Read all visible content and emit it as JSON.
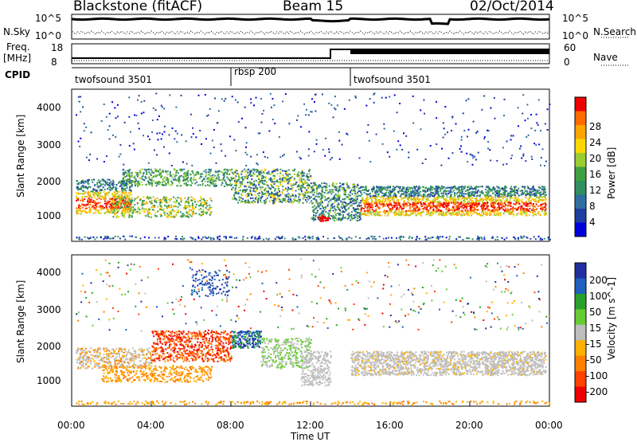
{
  "header": {
    "title": "Blackstone (fitACF)",
    "beam": "Beam 15",
    "date": "02/Oct/2014"
  },
  "panels": {
    "nsky": {
      "left_label": "N.Sky",
      "right_label": "N.Search",
      "left_ticks": [
        "10^5",
        "10^0"
      ],
      "right_ticks": [
        "10^5",
        "10^0"
      ]
    },
    "freq": {
      "left_label_1": "Freq.",
      "left_label_2": "[MHz]",
      "left_ticks": [
        "18",
        "8"
      ],
      "right_label": "Nave",
      "right_ticks": [
        "60",
        "0"
      ]
    },
    "cpid": {
      "label": "CPID",
      "segments": [
        {
          "name": "twofsound 3501",
          "start": 0,
          "end": 8
        },
        {
          "name": "rbsp 200",
          "start": 8,
          "end": 14
        },
        {
          "name": "twofsound 3501",
          "start": 14,
          "end": 24
        }
      ]
    }
  },
  "chart_data": [
    {
      "type": "heatmap",
      "title": "",
      "ylabel": "Slant Range [km]",
      "xlabel": "",
      "x_ticks": [
        "00:00",
        "04:00",
        "08:00",
        "12:00",
        "16:00",
        "20:00",
        "00:00"
      ],
      "xlim_hours": [
        0,
        24
      ],
      "y_ticks": [
        1000,
        2000,
        3000,
        4000
      ],
      "ylim": [
        180,
        4600
      ],
      "colorbar": {
        "label": "Power [dB]",
        "ticks": [
          4,
          8,
          12,
          16,
          20,
          24,
          28
        ],
        "colors": [
          "#0000dd",
          "#1f3fa0",
          "#2e6fa0",
          "#2f8f5f",
          "#3fa040",
          "#9acd32",
          "#ffd700",
          "#ffa500",
          "#ff6a00",
          "#ee0000"
        ]
      }
    },
    {
      "type": "heatmap",
      "title": "",
      "ylabel": "Slant Range [km]",
      "xlabel": "Time UT",
      "x_ticks": [
        "00:00",
        "04:00",
        "08:00",
        "12:00",
        "16:00",
        "20:00",
        "00:00"
      ],
      "xlim_hours": [
        0,
        24
      ],
      "y_ticks": [
        1000,
        2000,
        3000,
        4000
      ],
      "ylim": [
        180,
        4600
      ],
      "colorbar": {
        "label": "Velocity [m s^-1]",
        "ticks": [
          "200",
          "100",
          "50",
          "15",
          "-15",
          "-50",
          "-100",
          "-200"
        ],
        "colors": [
          "#2030a0",
          "#1e5fbf",
          "#2aa02a",
          "#66cc33",
          "#bebebe",
          "#ffb000",
          "#ff8000",
          "#ff4000",
          "#ee0000"
        ]
      }
    }
  ]
}
